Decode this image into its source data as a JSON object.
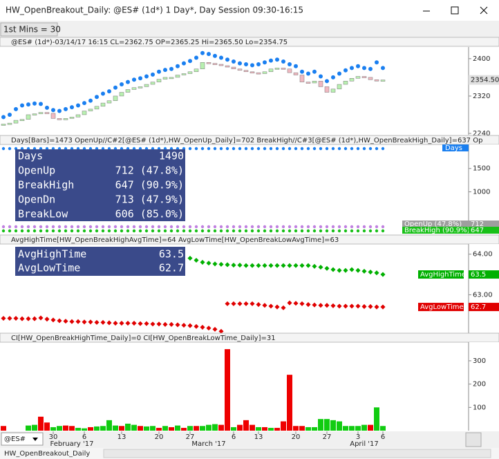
{
  "window_title": "HW_OpenBreakout_Daily: @ES# (1d*) 1 Day*, Day Session 09:30-16:15",
  "toolbar_button": "1st Mins = 30",
  "symbol": "@ES#",
  "tab": "HW_OpenBreakout_Daily",
  "price_pane": {
    "header": "@ES# (1d*)-03/14/17 16:15 CL=2362.75 OP=2365.25 Hi=2365.50 Lo=2354.75",
    "ylim": [
      2237,
      2425
    ],
    "yticks": [
      2400,
      2320,
      2240
    ],
    "last_price": {
      "value": 2354.5,
      "label": "2354.50"
    },
    "closes": [
      2260,
      2262,
      2268,
      2270,
      2280,
      2282,
      2285,
      2283,
      2272,
      2270,
      2272,
      2275,
      2280,
      2288,
      2292,
      2298,
      2305,
      2310,
      2320,
      2328,
      2334,
      2338,
      2340,
      2345,
      2350,
      2356,
      2360,
      2360,
      2365,
      2368,
      2372,
      2378,
      2392,
      2390,
      2388,
      2385,
      2382,
      2378,
      2375,
      2372,
      2370,
      2368,
      2372,
      2378,
      2380,
      2378,
      2370,
      2365,
      2350,
      2348,
      2352,
      2340,
      2328,
      2335,
      2345,
      2352,
      2358,
      2362,
      2360,
      2355,
      2352,
      2354.5
    ],
    "break_high": [
      2275,
      2280,
      2292,
      2300,
      2302,
      2304,
      2303,
      2295,
      2290,
      2288,
      2292,
      2296,
      2300,
      2305,
      2310,
      2318,
      2325,
      2330,
      2338,
      2345,
      2350,
      2355,
      2358,
      2362,
      2366,
      2372,
      2376,
      2378,
      2384,
      2390,
      2395,
      2402,
      2412,
      2410,
      2406,
      2402,
      2398,
      2394,
      2390,
      2388,
      2386,
      2388,
      2392,
      2396,
      2398,
      2394,
      2388,
      2384,
      2372,
      2368,
      2372,
      2362,
      2352,
      2360,
      2368,
      2375,
      2380,
      2384,
      2380,
      2378,
      2392,
      2380
    ]
  },
  "stats_pane": {
    "header": "Days[Bars]=1473 OpenUp//C#2[@ES# (1d*),HW_OpenUp_Daily]=702 BreakHigh//C#3[@ES# (1d*),HW_OpenBreakHigh_Daily]=637 Op",
    "ylim": [
      103,
      2015
    ],
    "yticks": [
      1500,
      1000
    ],
    "axis_tag": "Days",
    "table": [
      [
        "Days",
        "1490"
      ],
      [
        "OpenUp",
        "712 (47.8%)"
      ],
      [
        "BreakHigh",
        "647 (90.9%)"
      ],
      [
        "OpenDn",
        "713 (47.9%)"
      ],
      [
        "BreakLow",
        "606 (85.0%)"
      ]
    ],
    "tags": [
      {
        "name": "OpenUp (47.8%)",
        "value": "712",
        "color": "#9e9e9e"
      },
      {
        "name": "BreakHigh (90.9%)",
        "value": "647",
        "color": "#18c018"
      }
    ]
  },
  "time_pane": {
    "header": "AvgHighTime[HW_OpenBreakHighAvgTime]=64 AvgLowTime[HW_OpenBreakLowAvgTime]=63",
    "ylim": [
      62.02,
      64.25
    ],
    "yticks": [
      {
        "value": 64,
        "label": "64.00"
      },
      {
        "value": 63,
        "label": "63.00"
      }
    ],
    "table": [
      [
        "AvgHighTime",
        "63.5"
      ],
      [
        "AvgLowTime",
        "62.7"
      ]
    ],
    "series": [
      {
        "name": "AvgHighTime",
        "color": "#00b000",
        "last": "63.5",
        "values": [
          null,
          null,
          null,
          null,
          null,
          null,
          null,
          null,
          null,
          null,
          null,
          null,
          null,
          null,
          null,
          null,
          null,
          null,
          null,
          null,
          null,
          null,
          null,
          null,
          null,
          null,
          null,
          null,
          null,
          null,
          63.9,
          63.85,
          63.8,
          63.78,
          63.76,
          63.75,
          63.74,
          63.73,
          63.73,
          63.72,
          63.72,
          63.72,
          63.72,
          63.72,
          63.72,
          63.72,
          63.72,
          63.72,
          63.72,
          63.72,
          63.7,
          63.68,
          63.65,
          63.62,
          63.6,
          63.6,
          63.62,
          63.6,
          63.58,
          63.56,
          63.54,
          63.5
        ]
      },
      {
        "name": "AvgLowTime",
        "color": "#e00000",
        "last": "62.7",
        "values": [
          62.42,
          62.42,
          62.42,
          62.41,
          62.41,
          62.41,
          62.43,
          62.4,
          62.38,
          62.36,
          62.35,
          62.34,
          62.34,
          62.33,
          62.33,
          62.32,
          62.32,
          62.31,
          62.3,
          62.3,
          62.3,
          62.3,
          62.29,
          62.29,
          62.28,
          62.28,
          62.27,
          62.27,
          62.26,
          62.25,
          62.24,
          62.22,
          62.2,
          62.18,
          62.15,
          62.1,
          62.78,
          62.78,
          62.78,
          62.78,
          62.78,
          62.76,
          62.74,
          62.72,
          62.7,
          62.68,
          62.8,
          62.79,
          62.78,
          62.76,
          62.75,
          62.74,
          62.74,
          62.73,
          62.72,
          62.72,
          62.72,
          62.72,
          62.71,
          62.71,
          62.7,
          62.7
        ]
      }
    ]
  },
  "count_pane": {
    "header": "CI[HW_OpenBreakHighTime_Daily]=0 CI[HW_OpenBreakLowTime_Daily]=31",
    "ylim": [
      0,
      380
    ],
    "yticks": [
      300,
      200,
      100
    ],
    "values": [
      20,
      0,
      0,
      0,
      22,
      25,
      60,
      35,
      15,
      20,
      22,
      20,
      12,
      10,
      15,
      18,
      20,
      45,
      22,
      20,
      30,
      25,
      20,
      18,
      20,
      12,
      20,
      15,
      22,
      12,
      20,
      20,
      20,
      25,
      28,
      25,
      350,
      15,
      25,
      45,
      25,
      15,
      15,
      12,
      12,
      40,
      240,
      20,
      20,
      15,
      15,
      50,
      50,
      45,
      40,
      20,
      20,
      20,
      25,
      25,
      100,
      20
    ],
    "colors": [
      "#e00",
      "#e00",
      "#e00",
      "#e00",
      "#1c1",
      "#1c1",
      "#e00",
      "#e00",
      "#1c1",
      "#1c1",
      "#e00",
      "#e00",
      "#1c1",
      "#1c1",
      "#e00",
      "#1c1",
      "#1c1",
      "#1c1",
      "#1c1",
      "#e00",
      "#1c1",
      "#1c1",
      "#e00",
      "#1c1",
      "#1c1",
      "#e00",
      "#1c1",
      "#e00",
      "#1c1",
      "#e00",
      "#1c1",
      "#e00",
      "#1c1",
      "#1c1",
      "#1c1",
      "#e00",
      "#e00",
      "#1c1",
      "#e00",
      "#e00",
      "#e00",
      "#1c1",
      "#e00",
      "#1c1",
      "#e00",
      "#e00",
      "#e00",
      "#e00",
      "#e00",
      "#1c1",
      "#1c1",
      "#1c1",
      "#1c1",
      "#1c1",
      "#1c1",
      "#1c1",
      "#1c1",
      "#1c1",
      "#1c1",
      "#e00",
      "#1c1",
      "#1c1"
    ]
  },
  "x_labels": [
    "30",
    "6",
    "13",
    "20",
    "27",
    "6",
    "13",
    "20",
    "27",
    "3",
    "6"
  ],
  "month_labels": [
    "February '17",
    "March '17",
    "April '17"
  ]
}
